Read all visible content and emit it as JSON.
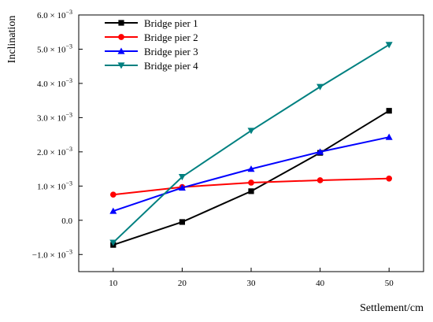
{
  "chart_data": {
    "type": "line",
    "title": "",
    "xlabel": "Settlement/cm",
    "ylabel": "Inclination",
    "x": [
      10,
      20,
      30,
      40,
      50
    ],
    "xticks": [
      "10",
      "20",
      "30",
      "40",
      "50"
    ],
    "xlim": [
      5,
      55
    ],
    "ylim": [
      -0.0015,
      0.006
    ],
    "yticks": [
      {
        "value": 0.006,
        "mantissa": "6.0",
        "exp": "−3"
      },
      {
        "value": 0.005,
        "mantissa": "5.0",
        "exp": "−3"
      },
      {
        "value": 0.004,
        "mantissa": "4.0",
        "exp": "−3"
      },
      {
        "value": 0.003,
        "mantissa": "3.0",
        "exp": "−3"
      },
      {
        "value": 0.002,
        "mantissa": "2.0",
        "exp": "−3"
      },
      {
        "value": 0.001,
        "mantissa": "1.0",
        "exp": "−3"
      },
      {
        "value": 0.0,
        "mantissa": "0.0",
        "exp": ""
      },
      {
        "value": -0.001,
        "mantissa": "−1.0",
        "exp": "−3"
      }
    ],
    "grid": false,
    "legend_position": "top-left",
    "series": [
      {
        "name": "Bridge pier 1",
        "color": "#000000",
        "marker": "square",
        "values": [
          -0.00072,
          -5e-05,
          0.00085,
          0.00197,
          0.0032
        ]
      },
      {
        "name": "Bridge pier 2",
        "color": "#ff0000",
        "marker": "circle",
        "values": [
          0.00075,
          0.00097,
          0.0011,
          0.00117,
          0.00122
        ]
      },
      {
        "name": "Bridge pier 3",
        "color": "#0000ff",
        "marker": "triangle-up",
        "values": [
          0.00027,
          0.00095,
          0.0015,
          0.002,
          0.00243
        ]
      },
      {
        "name": "Bridge pier 4",
        "color": "#008080",
        "marker": "triangle-down",
        "values": [
          -0.00065,
          0.00127,
          0.00262,
          0.0039,
          0.00513
        ]
      }
    ]
  }
}
